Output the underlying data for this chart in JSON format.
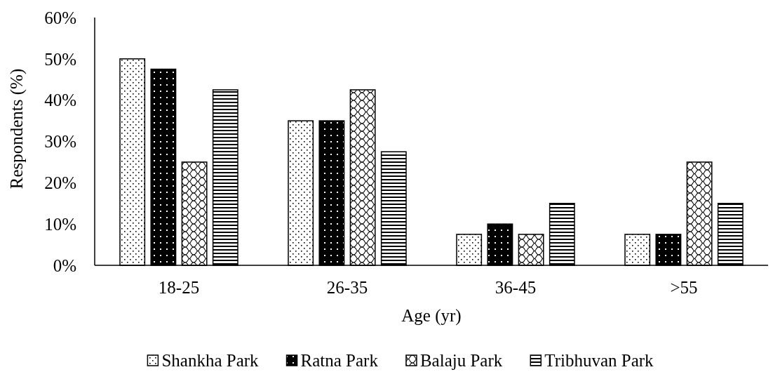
{
  "chart_data": {
    "type": "bar",
    "xlabel": "Age (yr)",
    "ylabel": "Respondents (%)",
    "categories": [
      "18-25",
      "26-35",
      "36-45",
      ">55"
    ],
    "series": [
      {
        "name": "Shankha Park",
        "color": "#000000",
        "values": [
          50,
          35,
          7.5,
          7.5
        ]
      },
      {
        "name": "Ratna Park",
        "color": "#000000",
        "values": [
          47.5,
          35,
          10,
          7.5
        ]
      },
      {
        "name": "Balaju Park",
        "color": "#000000",
        "values": [
          25,
          42.5,
          7.5,
          25
        ]
      },
      {
        "name": "Tribhuvan Park",
        "color": "#000000",
        "values": [
          42.5,
          27.5,
          15,
          15
        ]
      }
    ],
    "ylim": [
      0,
      60
    ],
    "yticks": [
      {
        "value": 0,
        "label": "0%"
      },
      {
        "value": 10,
        "label": "10%"
      },
      {
        "value": 20,
        "label": "20%"
      },
      {
        "value": 30,
        "label": "30%"
      },
      {
        "value": 40,
        "label": "40%"
      },
      {
        "value": 50,
        "label": "50%"
      },
      {
        "value": 60,
        "label": "60%"
      }
    ],
    "grid": false,
    "legend": "bottom"
  }
}
